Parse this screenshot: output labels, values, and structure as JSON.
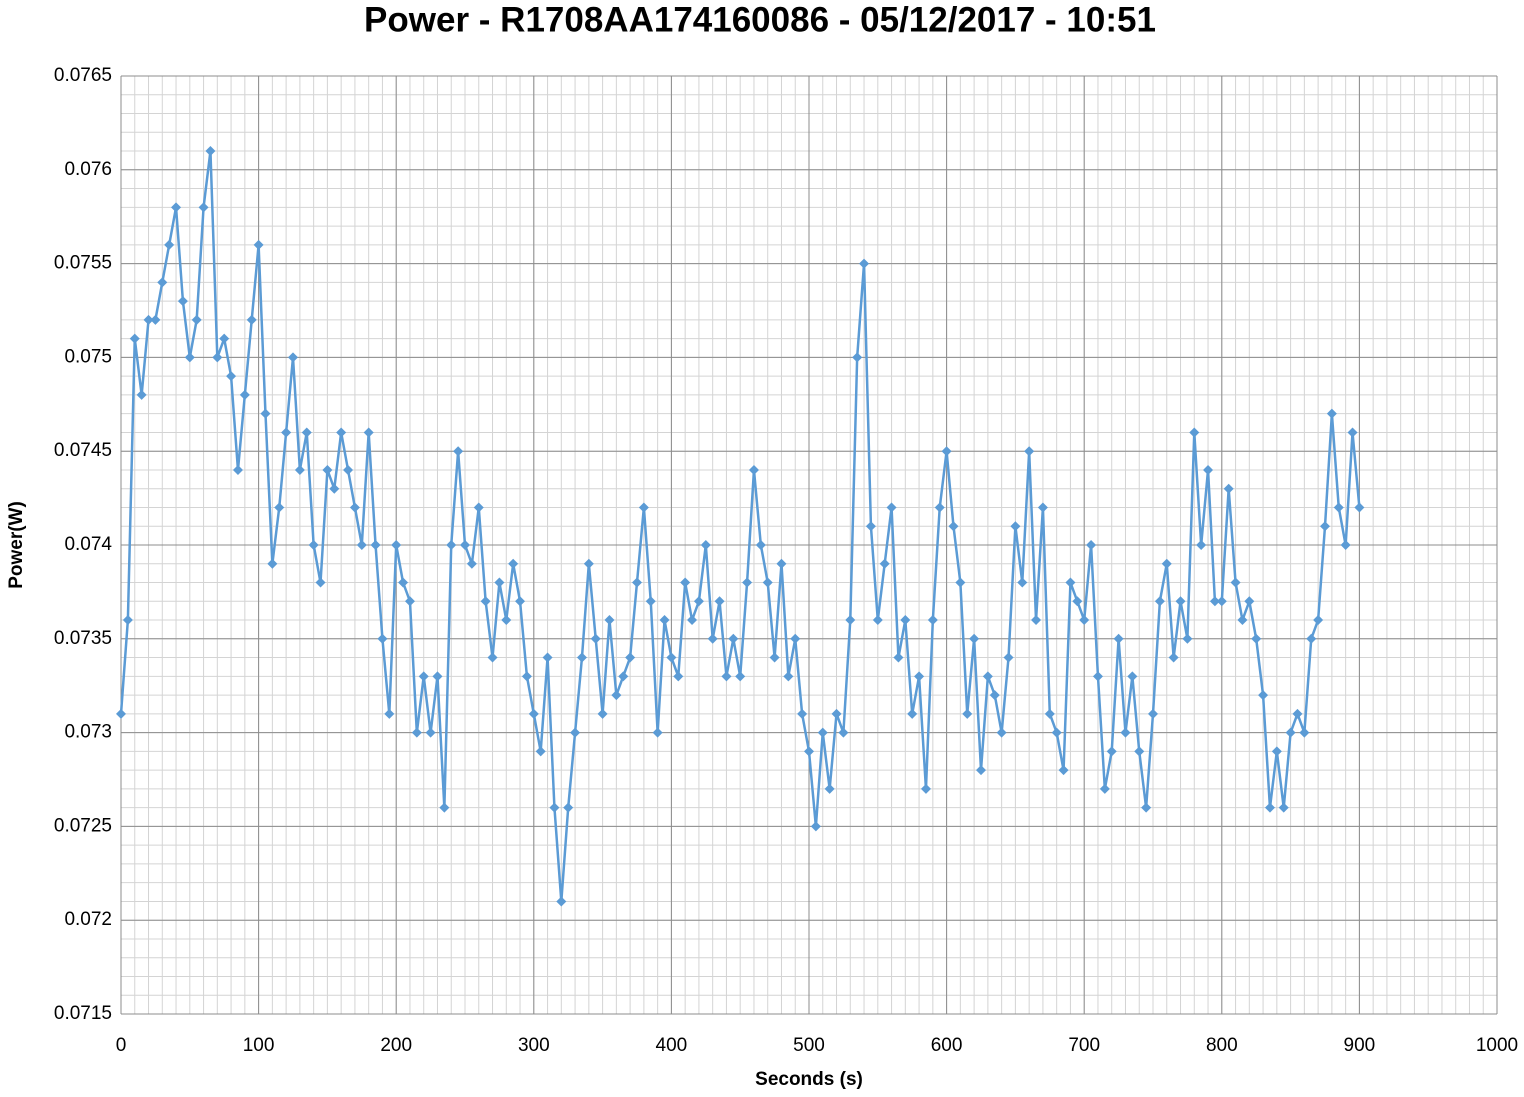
{
  "chart_data": {
    "type": "line",
    "title": "Power - R1708AA174160086 - 05/12/2017 - 10:51",
    "xlabel": "Seconds (s)",
    "ylabel": "Power(W)",
    "x": [
      0,
      5,
      10,
      15,
      20,
      25,
      30,
      35,
      40,
      45,
      50,
      55,
      60,
      65,
      70,
      75,
      80,
      85,
      90,
      95,
      100,
      105,
      110,
      115,
      120,
      125,
      130,
      135,
      140,
      145,
      150,
      155,
      160,
      165,
      170,
      175,
      180,
      185,
      190,
      195,
      200,
      205,
      210,
      215,
      220,
      225,
      230,
      235,
      240,
      245,
      250,
      255,
      260,
      265,
      270,
      275,
      280,
      285,
      290,
      295,
      300,
      305,
      310,
      315,
      320,
      325,
      330,
      335,
      340,
      345,
      350,
      355,
      360,
      365,
      370,
      375,
      380,
      385,
      390,
      395,
      400,
      405,
      410,
      415,
      420,
      425,
      430,
      435,
      440,
      445,
      450,
      455,
      460,
      465,
      470,
      475,
      480,
      485,
      490,
      495,
      500,
      505,
      510,
      515,
      520,
      525,
      530,
      535,
      540,
      545,
      550,
      555,
      560,
      565,
      570,
      575,
      580,
      585,
      590,
      595,
      600,
      605,
      610,
      615,
      620,
      625,
      630,
      635,
      640,
      645,
      650,
      655,
      660,
      665,
      670,
      675,
      680,
      685,
      690,
      695,
      700,
      705,
      710,
      715,
      720,
      725,
      730,
      735,
      740,
      745,
      750,
      755,
      760,
      765,
      770,
      775,
      780,
      785,
      790,
      795,
      800,
      805,
      810,
      815,
      820,
      825,
      830,
      835,
      840,
      845,
      850,
      855,
      860,
      865,
      870,
      875,
      880,
      885,
      890,
      895,
      900
    ],
    "series": [
      {
        "name": "Power",
        "color": "#5b9bd5",
        "marker": "diamond",
        "values": [
          0.0731,
          0.0736,
          0.0751,
          0.0748,
          0.0752,
          0.0752,
          0.0754,
          0.0756,
          0.0758,
          0.0753,
          0.075,
          0.0752,
          0.0758,
          0.0761,
          0.075,
          0.0751,
          0.0749,
          0.0744,
          0.0748,
          0.0752,
          0.0756,
          0.0747,
          0.0739,
          0.0742,
          0.0746,
          0.075,
          0.0744,
          0.0746,
          0.074,
          0.0738,
          0.0744,
          0.0743,
          0.0746,
          0.0744,
          0.0742,
          0.074,
          0.0746,
          0.074,
          0.0735,
          0.0731,
          0.074,
          0.0738,
          0.0737,
          0.073,
          0.0733,
          0.073,
          0.0733,
          0.0726,
          0.074,
          0.0745,
          0.074,
          0.0739,
          0.0742,
          0.0737,
          0.0734,
          0.0738,
          0.0736,
          0.0739,
          0.0737,
          0.0733,
          0.0731,
          0.0729,
          0.0734,
          0.0726,
          0.0721,
          0.0726,
          0.073,
          0.0734,
          0.0739,
          0.0735,
          0.0731,
          0.0736,
          0.0732,
          0.0733,
          0.0734,
          0.0738,
          0.0742,
          0.0737,
          0.073,
          0.0736,
          0.0734,
          0.0733,
          0.0738,
          0.0736,
          0.0737,
          0.074,
          0.0735,
          0.0737,
          0.0733,
          0.0735,
          0.0733,
          0.0738,
          0.0744,
          0.074,
          0.0738,
          0.0734,
          0.0739,
          0.0733,
          0.0735,
          0.0731,
          0.0729,
          0.0725,
          0.073,
          0.0727,
          0.0731,
          0.073,
          0.0736,
          0.075,
          0.0755,
          0.0741,
          0.0736,
          0.0739,
          0.0742,
          0.0734,
          0.0736,
          0.0731,
          0.0733,
          0.0727,
          0.0736,
          0.0742,
          0.0745,
          0.0741,
          0.0738,
          0.0731,
          0.0735,
          0.0728,
          0.0733,
          0.0732,
          0.073,
          0.0734,
          0.0741,
          0.0738,
          0.0745,
          0.0736,
          0.0742,
          0.0731,
          0.073,
          0.0728,
          0.0738,
          0.0737,
          0.0736,
          0.074,
          0.0733,
          0.0727,
          0.0729,
          0.0735,
          0.073,
          0.0733,
          0.0729,
          0.0726,
          0.0731,
          0.0737,
          0.0739,
          0.0734,
          0.0737,
          0.0735,
          0.0746,
          0.074,
          0.0744,
          0.0737,
          0.0737,
          0.0743,
          0.0738,
          0.0736,
          0.0737,
          0.0735,
          0.0732,
          0.0726,
          0.0729,
          0.0726,
          0.073,
          0.0731,
          0.073,
          0.0735,
          0.0736,
          0.0741,
          0.0747,
          0.0742,
          0.074,
          0.0746,
          0.0742
        ]
      }
    ],
    "xlim": [
      0,
      1000
    ],
    "xticks": [
      0,
      100,
      200,
      300,
      400,
      500,
      600,
      700,
      800,
      900,
      1000
    ],
    "ylim": [
      0.0715,
      0.0765
    ],
    "yticks": [
      0.0715,
      0.072,
      0.0725,
      0.073,
      0.0735,
      0.074,
      0.0745,
      0.075,
      0.0755,
      0.076,
      0.0765
    ],
    "grid": true,
    "minor_grid": {
      "x": 10,
      "y": 0.0001
    }
  }
}
